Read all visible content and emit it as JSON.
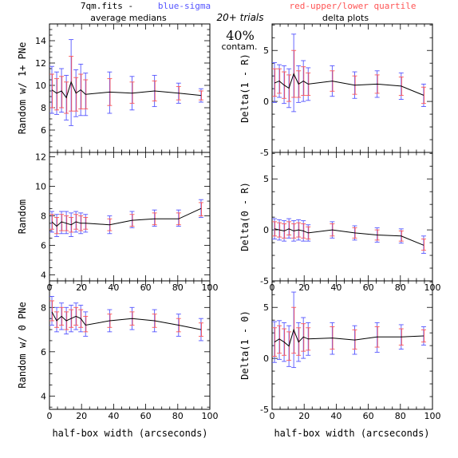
{
  "header": {
    "prefix": "7qm.fits -",
    "blue_label": "blue-sigma",
    "red_label": "red-upper/lower quartile",
    "trials": "20+ trials",
    "contam_value": "40%",
    "contam_label": "contam.",
    "left_title": "average medians",
    "right_title": "delta plots"
  },
  "colors": {
    "line": "#000000",
    "sigma": "#5555ff",
    "quartile": "#ff5555"
  },
  "shared_xlabel": "half-box width (arcseconds)",
  "chart_data": [
    {
      "id": "avg-1plus",
      "type": "line",
      "ylabel": "Random w/ 1+ PNe",
      "xlim": [
        0,
        100
      ],
      "ylim": [
        4,
        15.5
      ],
      "x_ticks": [
        0,
        20,
        40,
        60,
        80,
        100
      ],
      "y_ticks": [
        6,
        8,
        10,
        12,
        14
      ],
      "x": [
        1.5,
        4.5,
        7.5,
        10.5,
        13.5,
        16.5,
        19.5,
        22.5,
        37.5,
        51.5,
        65.5,
        80.5,
        94.5
      ],
      "y": [
        9.6,
        9.3,
        9.5,
        8.9,
        10.3,
        9.3,
        9.6,
        9.2,
        9.4,
        9.3,
        9.5,
        9.3,
        9.1
      ],
      "sigma_lo": [
        7.5,
        7.4,
        7.6,
        6.9,
        6.4,
        7.2,
        7.3,
        7.3,
        7.5,
        7.8,
        8.1,
        8.4,
        8.5
      ],
      "sigma_hi": [
        11.7,
        11.2,
        11.5,
        10.9,
        14.1,
        11.4,
        11.9,
        11.1,
        11.2,
        10.8,
        10.9,
        10.2,
        9.7
      ],
      "q_lo": [
        8.0,
        7.8,
        8.0,
        7.5,
        7.7,
        7.7,
        7.9,
        7.9,
        8.2,
        8.4,
        8.6,
        8.7,
        8.7
      ],
      "q_hi": [
        11.0,
        10.6,
        10.8,
        10.3,
        12.6,
        10.7,
        11.0,
        10.5,
        10.6,
        10.3,
        10.4,
        9.9,
        9.5
      ],
      "show_x_tick_labels": false
    },
    {
      "id": "avg-random",
      "type": "line",
      "ylabel": "Random",
      "xlim": [
        0,
        100
      ],
      "ylim": [
        3.6,
        12.3
      ],
      "x_ticks": [
        0,
        20,
        40,
        60,
        80,
        100
      ],
      "y_ticks": [
        4,
        6,
        8,
        10,
        12
      ],
      "x": [
        1.5,
        4.5,
        7.5,
        10.5,
        13.5,
        16.5,
        19.5,
        22.5,
        37.5,
        51.5,
        65.5,
        80.5,
        94.5
      ],
      "y": [
        7.6,
        7.3,
        7.6,
        7.5,
        7.4,
        7.6,
        7.5,
        7.5,
        7.4,
        7.7,
        7.8,
        7.8,
        8.5
      ],
      "sigma_lo": [
        6.9,
        6.6,
        6.8,
        6.8,
        6.6,
        6.9,
        6.8,
        6.9,
        6.8,
        7.2,
        7.3,
        7.3,
        7.9
      ],
      "sigma_hi": [
        8.3,
        8.1,
        8.3,
        8.3,
        8.2,
        8.3,
        8.2,
        8.1,
        8.0,
        8.3,
        8.4,
        8.4,
        9.1
      ],
      "q_lo": [
        7.1,
        6.8,
        7.0,
        7.0,
        6.9,
        7.1,
        7.0,
        7.1,
        7.0,
        7.3,
        7.4,
        7.4,
        8.0
      ],
      "q_hi": [
        8.1,
        7.9,
        8.1,
        8.0,
        7.9,
        8.1,
        8.0,
        7.9,
        7.8,
        8.1,
        8.2,
        8.2,
        8.9
      ],
      "x_tick_labels": [
        "0",
        "20",
        "40",
        "60",
        "80",
        "100"
      ],
      "show_x_tick_labels": true
    },
    {
      "id": "avg-0pne",
      "type": "line",
      "ylabel": "Random w/ 0 PNe",
      "xlim": [
        0,
        100
      ],
      "ylim": [
        3.4,
        9.2
      ],
      "x_ticks": [
        0,
        20,
        40,
        60,
        80,
        100
      ],
      "y_ticks": [
        4,
        6,
        8
      ],
      "x": [
        1.5,
        4.5,
        7.5,
        10.5,
        13.5,
        16.5,
        19.5,
        22.5,
        37.5,
        51.5,
        65.5,
        80.5,
        94.5
      ],
      "y": [
        7.8,
        7.4,
        7.6,
        7.4,
        7.5,
        7.6,
        7.5,
        7.2,
        7.4,
        7.5,
        7.4,
        7.2,
        7.0
      ],
      "sigma_lo": [
        7.2,
        6.9,
        7.0,
        6.8,
        6.9,
        7.0,
        6.9,
        6.7,
        6.9,
        7.0,
        6.9,
        6.7,
        6.5
      ],
      "sigma_hi": [
        8.5,
        8.0,
        8.2,
        8.0,
        8.1,
        8.2,
        8.1,
        7.8,
        7.9,
        8.0,
        7.9,
        7.7,
        7.5
      ],
      "q_lo": [
        7.4,
        7.1,
        7.2,
        7.0,
        7.1,
        7.2,
        7.1,
        6.9,
        7.1,
        7.2,
        7.1,
        6.9,
        6.7
      ],
      "q_hi": [
        8.3,
        7.8,
        8.0,
        7.8,
        7.9,
        8.0,
        7.9,
        7.6,
        7.7,
        7.8,
        7.7,
        7.5,
        7.3
      ],
      "x_tick_labels": [
        "0",
        "20",
        "40",
        "60",
        "80",
        "100"
      ],
      "show_x_tick_labels": true
    },
    {
      "id": "delta-1r",
      "type": "line",
      "ylabel": "Delta(1 - R)",
      "xlim": [
        0,
        100
      ],
      "ylim": [
        -5,
        7.6
      ],
      "x_ticks": [
        0,
        20,
        40,
        60,
        80,
        100
      ],
      "y_ticks": [
        -5,
        0,
        5
      ],
      "x": [
        1.5,
        4.5,
        7.5,
        10.5,
        13.5,
        16.5,
        19.5,
        22.5,
        37.5,
        51.5,
        65.5,
        80.5,
        94.5
      ],
      "y": [
        1.8,
        2.0,
        1.6,
        1.3,
        2.7,
        1.7,
        2.0,
        1.7,
        2.0,
        1.6,
        1.7,
        1.5,
        0.6
      ],
      "sigma_lo": [
        -0.1,
        0.4,
        -0.2,
        -0.6,
        -1.0,
        -0.1,
        0.0,
        0.1,
        0.5,
        0.3,
        0.4,
        0.2,
        -0.5
      ],
      "sigma_hi": [
        3.8,
        3.6,
        3.5,
        3.2,
        6.6,
        3.5,
        4.0,
        3.3,
        3.5,
        2.9,
        3.0,
        2.8,
        1.7
      ],
      "q_lo": [
        0.5,
        0.8,
        0.3,
        0.0,
        0.4,
        0.4,
        0.6,
        0.6,
        1.0,
        0.7,
        0.8,
        0.6,
        -0.2
      ],
      "q_hi": [
        3.2,
        3.2,
        2.9,
        2.6,
        5.0,
        3.0,
        3.4,
        2.8,
        3.0,
        2.5,
        2.6,
        2.4,
        1.4
      ],
      "show_x_tick_labels": false
    },
    {
      "id": "delta-0r",
      "type": "line",
      "ylabel": "Delta(0 - R)",
      "xlim": [
        0,
        100
      ],
      "ylim": [
        -5,
        7.6
      ],
      "x_ticks": [
        0,
        20,
        40,
        60,
        80,
        100
      ],
      "y_ticks": [
        -5,
        0,
        5
      ],
      "x": [
        1.5,
        4.5,
        7.5,
        10.5,
        13.5,
        16.5,
        19.5,
        22.5,
        37.5,
        51.5,
        65.5,
        80.5,
        94.5
      ],
      "y": [
        0.1,
        0.0,
        -0.1,
        0.1,
        -0.1,
        0.0,
        -0.1,
        -0.3,
        0.0,
        -0.3,
        -0.5,
        -0.6,
        -1.5
      ],
      "sigma_lo": [
        -0.9,
        -1.0,
        -1.1,
        -0.8,
        -1.1,
        -1.0,
        -1.1,
        -1.1,
        -0.8,
        -1.0,
        -1.2,
        -1.3,
        -2.3
      ],
      "sigma_hi": [
        1.1,
        1.0,
        0.9,
        1.1,
        0.9,
        1.0,
        0.9,
        0.5,
        0.8,
        0.4,
        0.2,
        0.1,
        -0.6
      ],
      "q_lo": [
        -0.6,
        -0.7,
        -0.8,
        -0.5,
        -0.8,
        -0.7,
        -0.8,
        -0.9,
        -0.6,
        -0.8,
        -1.0,
        -1.1,
        -2.0
      ],
      "q_hi": [
        0.8,
        0.7,
        0.6,
        0.8,
        0.6,
        0.7,
        0.6,
        0.3,
        0.6,
        0.2,
        0.0,
        -0.1,
        -0.9
      ],
      "x_tick_labels": [
        "0",
        "20",
        "40",
        "60",
        "80",
        "100"
      ],
      "show_x_tick_labels": true
    },
    {
      "id": "delta-10",
      "type": "line",
      "ylabel": "Delta(1 - 0)",
      "xlim": [
        0,
        100
      ],
      "ylim": [
        -5,
        7.6
      ],
      "x_ticks": [
        0,
        20,
        40,
        60,
        80,
        100
      ],
      "y_ticks": [
        -5,
        0,
        5
      ],
      "x": [
        1.5,
        4.5,
        7.5,
        10.5,
        13.5,
        16.5,
        19.5,
        22.5,
        37.5,
        51.5,
        65.5,
        80.5,
        94.5
      ],
      "y": [
        1.6,
        1.9,
        1.6,
        1.2,
        2.8,
        1.6,
        2.1,
        1.9,
        2.0,
        1.8,
        2.1,
        2.1,
        2.2
      ],
      "sigma_lo": [
        -0.4,
        -0.1,
        -0.3,
        -0.8,
        -0.9,
        -0.3,
        0.0,
        0.3,
        0.4,
        0.4,
        0.6,
        0.9,
        1.3
      ],
      "sigma_hi": [
        3.6,
        3.7,
        3.5,
        3.2,
        6.5,
        3.5,
        4.0,
        3.5,
        3.5,
        3.2,
        3.5,
        3.3,
        3.1
      ],
      "q_lo": [
        0.2,
        0.5,
        0.3,
        -0.2,
        0.5,
        0.3,
        0.7,
        0.8,
        0.9,
        0.9,
        1.1,
        1.3,
        1.6
      ],
      "q_hi": [
        3.0,
        3.2,
        2.9,
        2.6,
        5.0,
        3.0,
        3.4,
        3.0,
        3.1,
        2.8,
        3.1,
        2.9,
        2.8
      ],
      "x_tick_labels": [
        "0",
        "20",
        "40",
        "60",
        "80",
        "100"
      ],
      "show_x_tick_labels": true
    }
  ]
}
